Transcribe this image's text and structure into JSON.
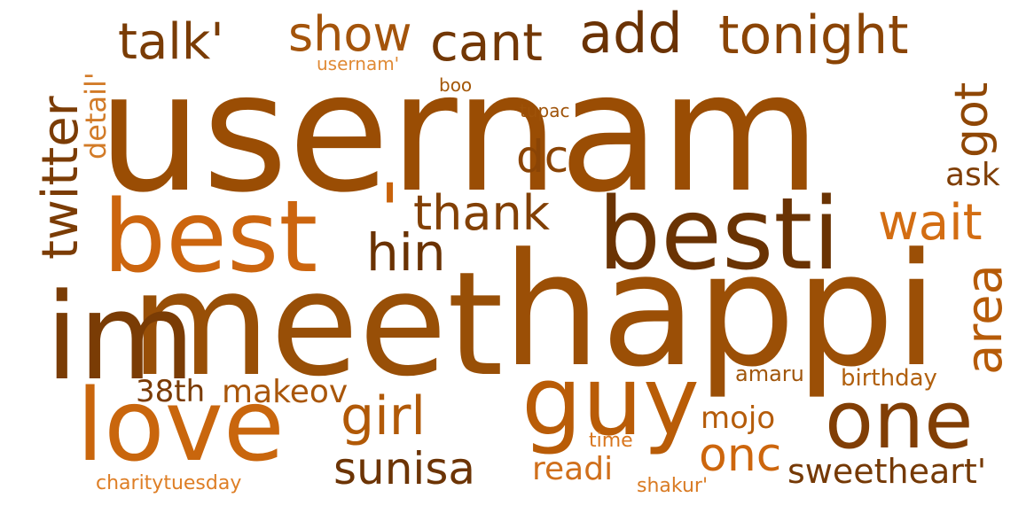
{
  "cloud": {
    "words": [
      {
        "text": "usernam",
        "color": "#9a4d04"
      },
      {
        "text": "meet",
        "color": "#984f07"
      },
      {
        "text": "happi",
        "color": "#9b4f06"
      },
      {
        "text": "im",
        "color": "#7a3c05"
      },
      {
        "text": "besti",
        "color": "#6a3303"
      },
      {
        "text": "best",
        "color": "#cc650e"
      },
      {
        "text": "'",
        "color": "#c8620a"
      },
      {
        "text": "guy",
        "color": "#b95c07"
      },
      {
        "text": "love",
        "color": "#c9660d"
      },
      {
        "text": "one",
        "color": "#813e05"
      },
      {
        "text": "talk'",
        "color": "#7a3c05"
      },
      {
        "text": "show",
        "color": "#a4540b"
      },
      {
        "text": "cant",
        "color": "#723705"
      },
      {
        "text": "add",
        "color": "#6a3204"
      },
      {
        "text": "tonight",
        "color": "#8a4405"
      },
      {
        "text": "twitter",
        "color": "#7b3c05"
      },
      {
        "text": "detail'",
        "color": "#d27b28"
      },
      {
        "text": "usernam'",
        "color": "#e08a35"
      },
      {
        "text": "boo",
        "color": "#a35607"
      },
      {
        "text": "tupac",
        "color": "#9e5208"
      },
      {
        "text": "dc",
        "color": "#8a4405"
      },
      {
        "text": "got",
        "color": "#8f4705"
      },
      {
        "text": "ask",
        "color": "#7f3e05"
      },
      {
        "text": "thank",
        "color": "#824005"
      },
      {
        "text": "wait",
        "color": "#d36d12"
      },
      {
        "text": "hin",
        "color": "#6a3203"
      },
      {
        "text": "area",
        "color": "#b65b08"
      },
      {
        "text": "girl",
        "color": "#b15907"
      },
      {
        "text": "38th",
        "color": "#7a3b05"
      },
      {
        "text": "makeov",
        "color": "#a9560a"
      },
      {
        "text": "sunisa",
        "color": "#6c3405"
      },
      {
        "text": "readi",
        "color": "#d06f1b"
      },
      {
        "text": "onc",
        "color": "#cd660d"
      },
      {
        "text": "mojo",
        "color": "#b55c0a"
      },
      {
        "text": "amaru",
        "color": "#a0560c"
      },
      {
        "text": "birthday",
        "color": "#b1600e"
      },
      {
        "text": "sweetheart'",
        "color": "#753905"
      },
      {
        "text": "time",
        "color": "#d9761e"
      },
      {
        "text": "shakur'",
        "color": "#d97b24"
      },
      {
        "text": "charitytuesday",
        "color": "#de7e25"
      }
    ]
  }
}
